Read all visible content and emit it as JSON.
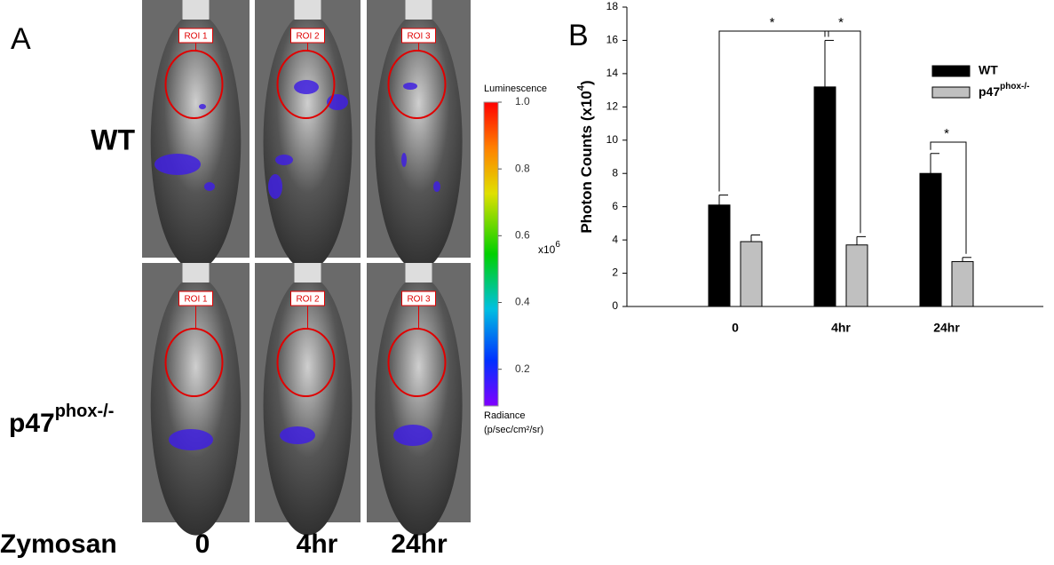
{
  "panel_a": {
    "label": "A",
    "rows": [
      "WT",
      {
        "main": "p47",
        "sup": "phox-/-"
      }
    ],
    "row_prefix": "Zymosan",
    "columns": [
      "0",
      "4hr",
      "24hr"
    ],
    "roi": [
      [
        "ROI 1",
        "ROI 2",
        "ROI 3"
      ],
      [
        "ROI 1",
        "ROI 2",
        "ROI 3"
      ]
    ],
    "colorbar": {
      "title": "Luminescence",
      "unit": "x10",
      "unit_sup": "6",
      "footer": [
        "Radiance",
        "(p/sec/cm²/sr)"
      ],
      "lim": [
        0.09,
        1.0
      ],
      "ticks": [
        {
          "value": 0.2,
          "label": "0.2"
        },
        {
          "value": 0.4,
          "label": "0.4"
        },
        {
          "value": 0.6,
          "label": "0.6"
        },
        {
          "value": 0.8,
          "label": "0.8"
        },
        {
          "value": 1.0,
          "label": "1.0"
        }
      ]
    }
  },
  "chart_data": {
    "type": "bar",
    "panel_label": "B",
    "y_label": {
      "main": "Photon Counts (x10",
      "sup": "4",
      "end": ")"
    },
    "categories": [
      "0",
      "4hr",
      "24hr"
    ],
    "series": [
      {
        "name": "WT",
        "color": "#000000",
        "values": [
          6.1,
          13.2,
          8.0
        ],
        "errors": [
          0.6,
          2.8,
          1.2
        ]
      },
      {
        "name": "p47",
        "name_sup": "phox-/-",
        "color": "#c0c0c0",
        "values": [
          3.9,
          3.7,
          2.7
        ],
        "errors": [
          0.4,
          0.5,
          0.25
        ]
      }
    ],
    "annotations": [
      "*",
      "*",
      "*"
    ],
    "ylim": [
      0,
      18
    ],
    "yticks": [
      0,
      2,
      4,
      6,
      8,
      10,
      12,
      14,
      16,
      18
    ],
    "grid": false,
    "legend": "upper right"
  }
}
